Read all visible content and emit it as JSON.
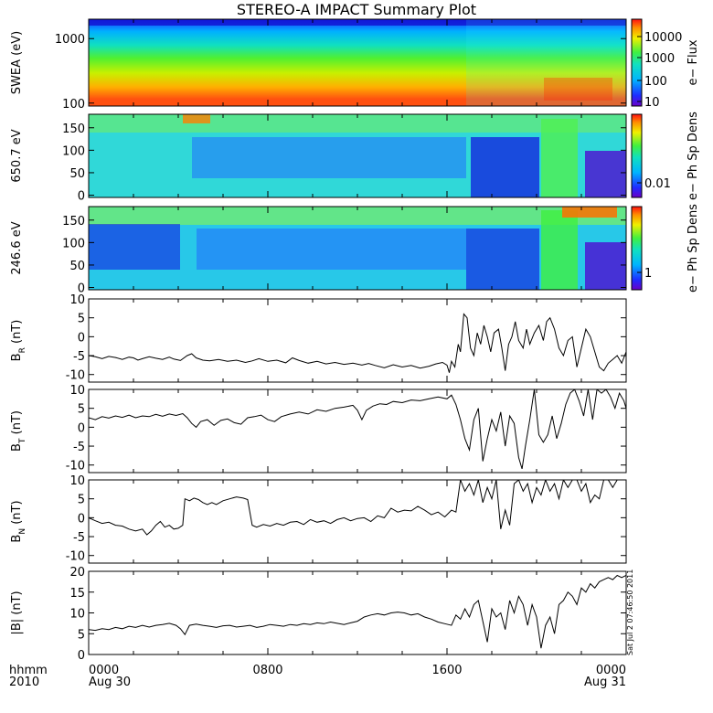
{
  "title": "STEREO-A IMPACT Summary Plot",
  "side_stamp": "Sat Jul  2 07:46:50 2011",
  "time_axis": {
    "row1_labels": [
      "hhmm",
      "0000",
      "0800",
      "1600",
      "0000"
    ],
    "row2_labels": [
      "2010",
      "Aug 30",
      "",
      "",
      "Aug 31"
    ],
    "range_hours": [
      0,
      24
    ],
    "major_ticks_hours": [
      0,
      8,
      16,
      24
    ]
  },
  "chart_data": [
    {
      "type": "heatmap",
      "ylabel": "SWEA (eV)",
      "y_scale": "log",
      "ylim": [
        90,
        2000
      ],
      "yticks": [
        {
          "v": 100,
          "label": "100"
        },
        {
          "v": 1000,
          "label": "1000"
        }
      ],
      "colorbar": {
        "label": "e− Flux",
        "scale": "log",
        "ticks": [
          "10",
          "100",
          "1000",
          "10000"
        ]
      }
    },
    {
      "type": "heatmap",
      "ylabel": "650.7 eV",
      "ylim": [
        -5,
        180
      ],
      "yticks": [
        0,
        50,
        100,
        150
      ],
      "colorbar": {
        "label": "e− Ph Sp Dens",
        "scale": "log",
        "ticks": [
          "0.01"
        ]
      }
    },
    {
      "type": "heatmap",
      "ylabel": "246.6 eV",
      "ylim": [
        -5,
        180
      ],
      "yticks": [
        0,
        50,
        100,
        150
      ],
      "colorbar": {
        "label": "e− Ph Sp Dens",
        "scale": "log",
        "ticks": [
          "1"
        ]
      }
    },
    {
      "type": "line",
      "ylabel": "B",
      "ylabel_sub": "R",
      "ylabel_unit": "(nT)",
      "ylim": [
        -12,
        10
      ],
      "yticks": [
        -10,
        -5,
        0,
        5,
        10
      ],
      "x": [
        0,
        0.3,
        0.6,
        0.9,
        1.2,
        1.5,
        1.8,
        2.0,
        2.2,
        2.4,
        2.7,
        3.0,
        3.3,
        3.6,
        3.8,
        4.1,
        4.4,
        4.6,
        4.8,
        5.1,
        5.4,
        5.8,
        6.2,
        6.6,
        7.0,
        7.3,
        7.6,
        8.0,
        8.4,
        8.8,
        9.1,
        9.4,
        9.8,
        10.2,
        10.6,
        11.0,
        11.4,
        11.8,
        12.2,
        12.5,
        12.8,
        13.2,
        13.6,
        14.0,
        14.4,
        14.8,
        15.2,
        15.5,
        15.8,
        16.0,
        16.1,
        16.2,
        16.35,
        16.5,
        16.6,
        16.75,
        16.9,
        17.05,
        17.2,
        17.35,
        17.5,
        17.65,
        17.8,
        17.95,
        18.1,
        18.3,
        18.45,
        18.6,
        18.75,
        18.9,
        19.05,
        19.2,
        19.4,
        19.55,
        19.7,
        19.9,
        20.1,
        20.3,
        20.45,
        20.6,
        20.8,
        21.0,
        21.2,
        21.4,
        21.6,
        21.8,
        22.0,
        22.2,
        22.4,
        22.6,
        22.8,
        23.0,
        23.2,
        23.4,
        23.6,
        23.8,
        24.0
      ],
      "y": [
        -5,
        -5.3,
        -5.8,
        -5.2,
        -5.5,
        -6,
        -5.4,
        -5.6,
        -6.2,
        -5.8,
        -5.3,
        -5.7,
        -6,
        -5.4,
        -5.9,
        -6.3,
        -5,
        -4.5,
        -5.6,
        -6.2,
        -6.4,
        -6,
        -6.5,
        -6.2,
        -6.8,
        -6.4,
        -5.8,
        -6.5,
        -6.2,
        -6.9,
        -5.6,
        -6.3,
        -7,
        -6.5,
        -7.2,
        -6.8,
        -7.3,
        -7,
        -7.5,
        -7.1,
        -7.6,
        -8.2,
        -7.4,
        -8,
        -7.6,
        -8.3,
        -7.8,
        -7.2,
        -6.8,
        -7.5,
        -9.5,
        -6.5,
        -8,
        -2,
        -4,
        6,
        5,
        -3,
        -5,
        1,
        -2,
        3,
        0,
        -4,
        1,
        2,
        -3,
        -9,
        -2,
        0,
        4,
        -1,
        -3,
        2,
        -2,
        1,
        3,
        -1,
        4,
        5,
        2,
        -3,
        -5,
        -1,
        0,
        -8,
        -3,
        2,
        0,
        -4,
        -8,
        -9,
        -7,
        -6,
        -5,
        -7,
        -4
      ]
    },
    {
      "type": "line",
      "ylabel": "B",
      "ylabel_sub": "T",
      "ylabel_unit": "(nT)",
      "ylim": [
        -12,
        10
      ],
      "yticks": [
        -10,
        -5,
        0,
        5,
        10
      ],
      "x": [
        0,
        0.3,
        0.6,
        0.9,
        1.2,
        1.5,
        1.8,
        2.1,
        2.4,
        2.7,
        3.0,
        3.3,
        3.6,
        3.9,
        4.2,
        4.4,
        4.6,
        4.8,
        5.0,
        5.3,
        5.6,
        5.9,
        6.2,
        6.5,
        6.8,
        7.1,
        7.4,
        7.7,
        8.0,
        8.3,
        8.6,
        9.0,
        9.4,
        9.8,
        10.2,
        10.6,
        11.0,
        11.4,
        11.8,
        12.0,
        12.2,
        12.4,
        12.7,
        13.0,
        13.3,
        13.6,
        14.0,
        14.4,
        14.8,
        15.2,
        15.6,
        16.0,
        16.2,
        16.4,
        16.6,
        16.8,
        17.0,
        17.2,
        17.4,
        17.6,
        17.8,
        18.0,
        18.2,
        18.4,
        18.6,
        18.8,
        19.0,
        19.2,
        19.35,
        19.5,
        19.7,
        19.9,
        20.1,
        20.3,
        20.5,
        20.7,
        20.9,
        21.1,
        21.3,
        21.5,
        21.7,
        21.9,
        22.1,
        22.3,
        22.5,
        22.7,
        22.9,
        23.1,
        23.3,
        23.5,
        23.7,
        23.9,
        24.0
      ],
      "y": [
        2.5,
        2,
        2.8,
        2.4,
        3,
        2.6,
        3.2,
        2.5,
        3,
        2.8,
        3.4,
        2.9,
        3.5,
        3.1,
        3.6,
        2.5,
        1,
        0,
        1.5,
        2,
        0.5,
        1.8,
        2.2,
        1.2,
        0.8,
        2.5,
        2.8,
        3.2,
        2,
        1.5,
        2.8,
        3.5,
        4,
        3.5,
        4.6,
        4.2,
        5,
        5.3,
        5.8,
        4.5,
        2,
        4.5,
        5.6,
        6.2,
        6,
        6.8,
        6.5,
        7.2,
        7,
        7.5,
        8,
        7.5,
        8.5,
        6,
        2,
        -3,
        -6,
        2,
        5,
        -9,
        -3,
        2,
        -1,
        4,
        -5,
        3,
        1,
        -8,
        -11,
        -5,
        2,
        10,
        -2,
        -4,
        -2,
        3,
        -3,
        1,
        6,
        9,
        10,
        7,
        3,
        10,
        2,
        10,
        9,
        10,
        8,
        5,
        9,
        7,
        5
      ]
    },
    {
      "type": "line",
      "ylabel": "B",
      "ylabel_sub": "N",
      "ylabel_unit": "(nT)",
      "ylim": [
        -12,
        10
      ],
      "yticks": [
        -10,
        -5,
        0,
        5,
        10
      ],
      "x": [
        0,
        0.3,
        0.6,
        0.9,
        1.2,
        1.5,
        1.8,
        2.1,
        2.4,
        2.6,
        2.8,
        3.0,
        3.2,
        3.4,
        3.6,
        3.8,
        4.0,
        4.2,
        4.3,
        4.5,
        4.7,
        4.9,
        5.1,
        5.3,
        5.5,
        5.7,
        6.0,
        6.3,
        6.6,
        6.9,
        7.1,
        7.3,
        7.5,
        7.8,
        8.1,
        8.4,
        8.7,
        9.0,
        9.3,
        9.6,
        9.9,
        10.2,
        10.5,
        10.8,
        11.1,
        11.4,
        11.7,
        12.0,
        12.3,
        12.6,
        12.9,
        13.2,
        13.5,
        13.8,
        14.1,
        14.4,
        14.7,
        15.0,
        15.3,
        15.6,
        15.9,
        16.2,
        16.4,
        16.6,
        16.8,
        17.0,
        17.2,
        17.4,
        17.6,
        17.8,
        18.0,
        18.2,
        18.4,
        18.6,
        18.8,
        19.0,
        19.2,
        19.4,
        19.6,
        19.8,
        20.0,
        20.2,
        20.4,
        20.6,
        20.8,
        21.0,
        21.2,
        21.4,
        21.6,
        21.8,
        22.0,
        22.2,
        22.4,
        22.6,
        22.8,
        23.0,
        23.2,
        23.4,
        23.6,
        23.8,
        24.0
      ],
      "y": [
        0,
        -0.8,
        -1.5,
        -1.2,
        -2,
        -2.2,
        -3,
        -3.5,
        -3,
        -4.5,
        -3.5,
        -2,
        -1,
        -2.5,
        -2,
        -3,
        -2.8,
        -2,
        5,
        4.5,
        5.2,
        4.8,
        4,
        3.5,
        4,
        3.5,
        4.5,
        5,
        5.5,
        5.2,
        4.8,
        -2,
        -2.5,
        -1.8,
        -2.2,
        -1.5,
        -2,
        -1.2,
        -1,
        -1.8,
        -0.5,
        -1.2,
        -0.8,
        -1.5,
        -0.5,
        0,
        -0.8,
        -0.2,
        0,
        -1,
        0.5,
        0,
        2.5,
        1.5,
        2,
        1.8,
        3,
        2,
        0.8,
        1.5,
        0.2,
        2,
        1.5,
        10,
        7,
        9,
        6,
        10,
        4,
        8,
        5,
        10,
        -3,
        2,
        -2,
        9,
        10,
        7,
        9,
        4,
        8,
        6,
        10,
        7,
        9,
        5,
        10,
        8,
        10,
        10,
        7,
        9,
        4,
        6,
        5,
        10,
        10,
        8,
        10,
        10,
        10
      ]
    },
    {
      "type": "line",
      "ylabel": "|B| (nT)",
      "ylim": [
        0,
        20
      ],
      "yticks": [
        0,
        5,
        10,
        15,
        20
      ],
      "x": [
        0,
        0.3,
        0.6,
        0.9,
        1.2,
        1.5,
        1.8,
        2.1,
        2.4,
        2.7,
        3.0,
        3.3,
        3.6,
        3.9,
        4.1,
        4.3,
        4.5,
        4.8,
        5.1,
        5.4,
        5.7,
        6.0,
        6.3,
        6.6,
        6.9,
        7.2,
        7.5,
        7.8,
        8.1,
        8.4,
        8.7,
        9.0,
        9.3,
        9.6,
        9.9,
        10.2,
        10.5,
        10.8,
        11.1,
        11.4,
        11.7,
        12.0,
        12.3,
        12.6,
        12.9,
        13.2,
        13.5,
        13.8,
        14.1,
        14.4,
        14.7,
        15.0,
        15.3,
        15.6,
        15.9,
        16.2,
        16.4,
        16.6,
        16.8,
        17.0,
        17.2,
        17.4,
        17.6,
        17.8,
        18.0,
        18.2,
        18.4,
        18.6,
        18.8,
        19.0,
        19.2,
        19.4,
        19.6,
        19.8,
        20.0,
        20.2,
        20.4,
        20.6,
        20.8,
        21.0,
        21.2,
        21.4,
        21.6,
        21.8,
        22.0,
        22.2,
        22.4,
        22.6,
        22.8,
        23.0,
        23.2,
        23.4,
        23.6,
        23.8,
        24.0
      ],
      "y": [
        6,
        5.8,
        6.2,
        6,
        6.5,
        6.2,
        6.8,
        6.5,
        7,
        6.6,
        7,
        7.2,
        7.5,
        7,
        6.2,
        4.8,
        7,
        7.3,
        7,
        6.8,
        6.5,
        6.9,
        7,
        6.6,
        6.8,
        7,
        6.5,
        6.8,
        7.2,
        7,
        6.8,
        7.2,
        7,
        7.4,
        7.2,
        7.6,
        7.4,
        7.8,
        7.5,
        7.2,
        7.6,
        8,
        9,
        9.5,
        9.8,
        9.5,
        10,
        10.2,
        10,
        9.5,
        9.8,
        9,
        8.5,
        7.8,
        7.4,
        7,
        9.5,
        8.5,
        11,
        9,
        12,
        13,
        8,
        3,
        11,
        9,
        10,
        6,
        13,
        10,
        14,
        12,
        7,
        12,
        9,
        1.5,
        7,
        9,
        5,
        12,
        13,
        15,
        14,
        12,
        16,
        15,
        17,
        16,
        17.5,
        18,
        18.5,
        18,
        19,
        18.5,
        19
      ]
    }
  ]
}
